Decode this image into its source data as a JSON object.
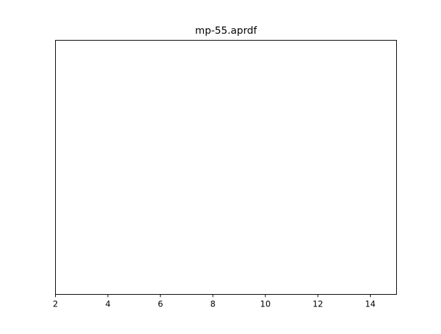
{
  "chart_data": {
    "type": "line",
    "title": "mp-55.aprdf",
    "xlabel": "",
    "ylabel": "",
    "xlim": [
      2,
      15
    ],
    "x_ticks": [
      2,
      4,
      6,
      8,
      10,
      12,
      14
    ],
    "x_tick_labels": [
      "2",
      "4",
      "6",
      "8",
      "10",
      "12",
      "14"
    ],
    "y_axis_visible": false,
    "grid": false,
    "legend": "none",
    "series": []
  },
  "colors": {
    "background": "#ffffff",
    "axes": "#000000"
  }
}
